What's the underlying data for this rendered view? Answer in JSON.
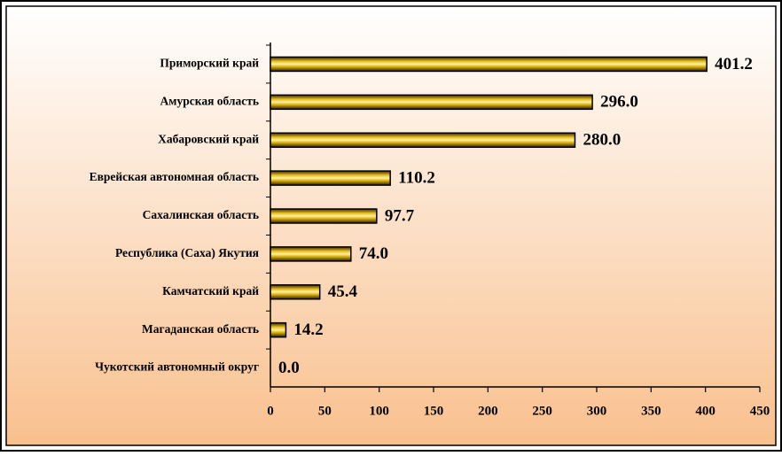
{
  "chart_data": {
    "type": "bar",
    "orientation": "horizontal",
    "categories": [
      "Приморский край",
      "Амурская область",
      "Хабаровский край",
      "Еврейская автономная область",
      "Сахалинская область",
      "Республика (Саха) Якутия",
      "Камчатский край",
      "Магаданская область",
      "Чукотский автономный округ"
    ],
    "values": [
      401.2,
      296.0,
      280.0,
      110.2,
      97.7,
      74.0,
      45.4,
      14.2,
      0.0
    ],
    "value_labels": [
      "401.2",
      "296.0",
      "280.0",
      "110.2",
      "97.7",
      "74.0",
      "45.4",
      "14.2",
      "0.0"
    ],
    "color": "#d4a900",
    "xlim": [
      0,
      450
    ],
    "xticks": [
      0,
      50,
      100,
      150,
      200,
      250,
      300,
      350,
      400,
      450
    ]
  }
}
